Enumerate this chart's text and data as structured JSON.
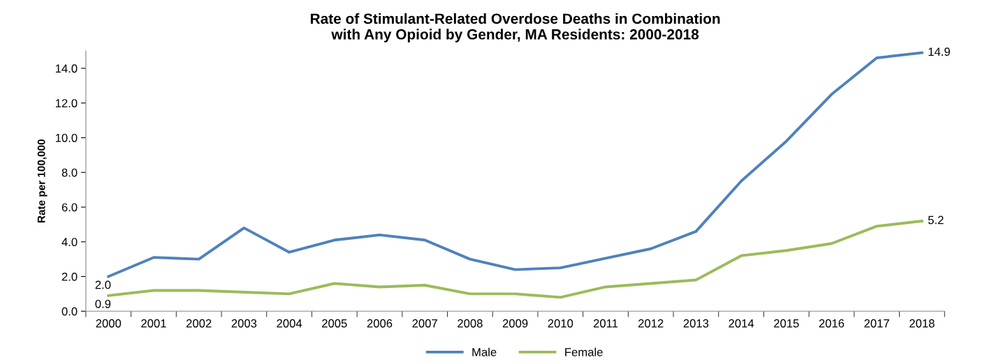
{
  "chart_data": {
    "type": "line",
    "title": "Rate of Stimulant-Related Overdose Deaths in Combination\nwith Any Opioid by Gender, MA Residents: 2000-2018",
    "ylabel": "Rate per 100,000",
    "categories": [
      "2000",
      "2001",
      "2002",
      "2003",
      "2004",
      "2005",
      "2006",
      "2007",
      "2008",
      "2009",
      "2010",
      "2011",
      "2012",
      "2013",
      "2014",
      "2015",
      "2016",
      "2017",
      "2018"
    ],
    "series": [
      {
        "name": "Male",
        "color": "#4f81bd",
        "values": [
          2.0,
          3.1,
          3.0,
          4.8,
          3.4,
          4.1,
          4.4,
          4.1,
          3.0,
          2.4,
          2.5,
          3.05,
          3.6,
          4.6,
          7.5,
          9.8,
          12.5,
          14.6,
          14.9
        ],
        "value_labels": [
          "2.0",
          null,
          null,
          null,
          null,
          null,
          null,
          null,
          null,
          null,
          null,
          null,
          null,
          null,
          null,
          null,
          null,
          null,
          "14.9"
        ]
      },
      {
        "name": "Female",
        "color": "#9bbb59",
        "values": [
          0.9,
          1.2,
          1.2,
          1.1,
          1.0,
          1.6,
          1.4,
          1.5,
          1.0,
          1.0,
          0.8,
          1.4,
          1.6,
          1.8,
          3.2,
          3.5,
          3.9,
          4.9,
          5.2
        ],
        "value_labels": [
          "0.9",
          null,
          null,
          null,
          null,
          null,
          null,
          null,
          null,
          null,
          null,
          null,
          null,
          null,
          null,
          null,
          null,
          null,
          "5.2"
        ]
      }
    ],
    "ylim": [
      0,
      15
    ],
    "yticks": [
      {
        "value": 0,
        "label": "0.0"
      },
      {
        "value": 2,
        "label": "2.0"
      },
      {
        "value": 4,
        "label": "4.0"
      },
      {
        "value": 6,
        "label": "6.0"
      },
      {
        "value": 8,
        "label": "8.0"
      },
      {
        "value": 10,
        "label": "10.0"
      },
      {
        "value": 12,
        "label": "12.0"
      },
      {
        "value": 14,
        "label": "14.0"
      }
    ],
    "grid": false,
    "legend": "bottom",
    "marker": "none",
    "line_style": "solid"
  }
}
